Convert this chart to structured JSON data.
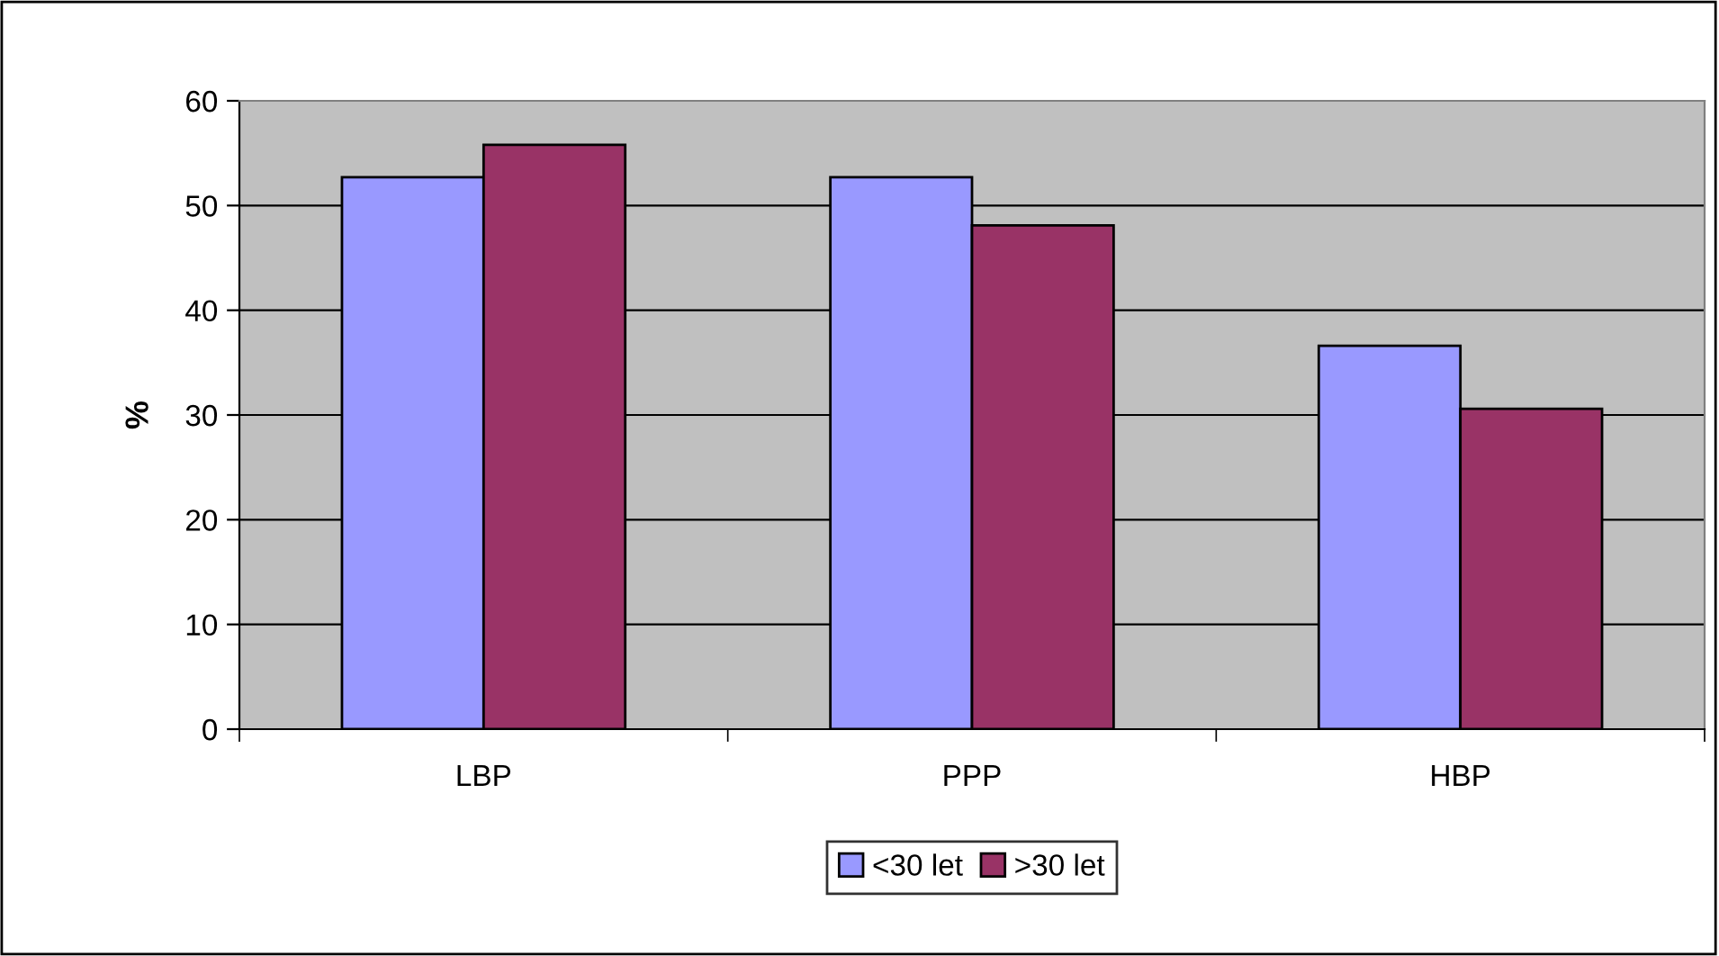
{
  "chart_data": {
    "type": "bar",
    "ylabel": "%",
    "categories": [
      "LBP",
      "PPP",
      "HBP"
    ],
    "series": [
      {
        "name": "<30 let",
        "color": "#9999ff",
        "values": [
          52.7,
          52.7,
          36.6
        ]
      },
      {
        "name": ">30 let",
        "color": "#993366",
        "values": [
          55.8,
          48.1,
          30.6
        ]
      }
    ],
    "ylim": [
      0,
      60
    ],
    "yticks": [
      0,
      10,
      20,
      30,
      40,
      50,
      60
    ],
    "grid": "y",
    "legend": "bottom"
  }
}
